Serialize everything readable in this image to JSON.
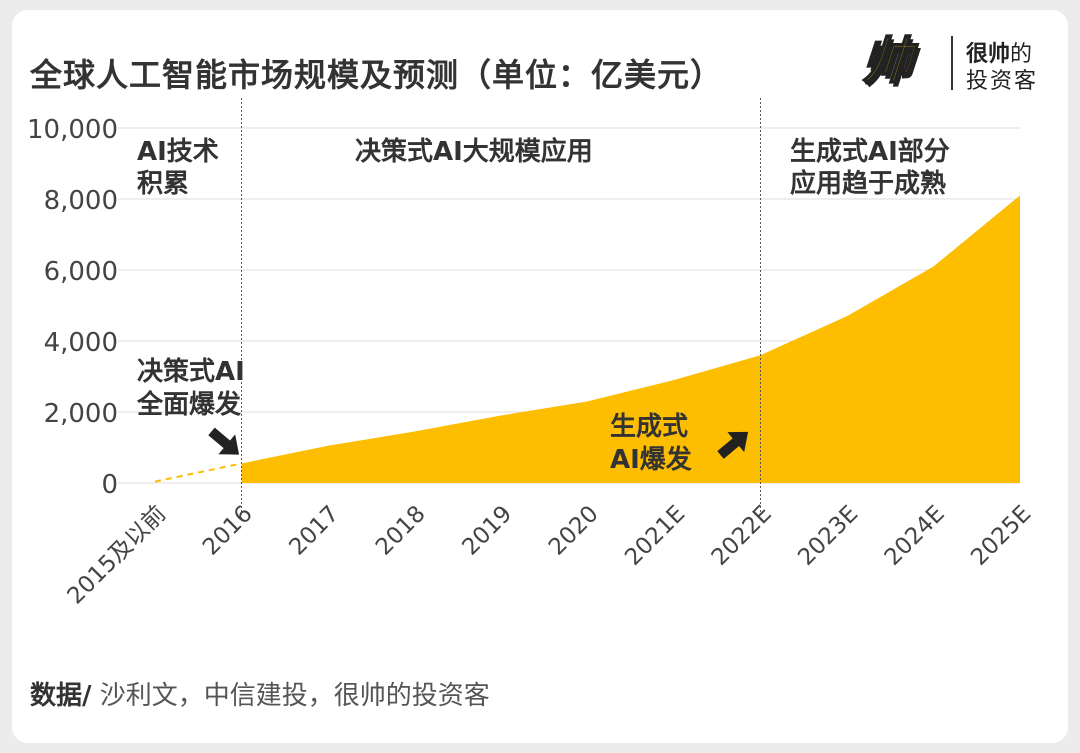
{
  "chart_data": {
    "type": "area",
    "title": "全球人工智能市场规模及预测（单位：亿美元）",
    "categories": [
      "2015及以前",
      "2016",
      "2017",
      "2018",
      "2019",
      "2020",
      "2021E",
      "2022E",
      "2023E",
      "2024E",
      "2025E"
    ],
    "series": [
      {
        "values": [
          40,
          550,
          1050,
          1450,
          1900,
          2300,
          2900,
          3600,
          4700,
          6100,
          8100
        ]
      }
    ],
    "ylim": [
      0,
      10000
    ],
    "yticks": [
      "0",
      "2,000",
      "4,000",
      "6,000",
      "8,000",
      "10,000"
    ],
    "ytick_values": [
      0,
      2000,
      4000,
      6000,
      8000,
      10000
    ],
    "grid": true,
    "colors": {
      "area": "#fdbd00",
      "dashed": "#fdbd00",
      "grid": "#dddddd",
      "divider": "#555555"
    },
    "phases": [
      {
        "label": [
          "AI技术",
          "积累"
        ],
        "divider_after": "2016"
      },
      {
        "label": [
          "决策式AI大规模应用"
        ],
        "divider_after": "2022E"
      },
      {
        "label": [
          "生成式AI部分",
          "应用趋于成熟"
        ]
      }
    ],
    "annotations": [
      {
        "lines": [
          "决策式AI",
          "全面爆发"
        ],
        "at": "2016",
        "arrow": "down-right"
      },
      {
        "lines": [
          "生成式",
          "AI爆发"
        ],
        "at": "2022E",
        "arrow": "up-right"
      }
    ]
  },
  "logo": {
    "mark": "帅",
    "line1_bold": "很帅",
    "line1_rest": "的",
    "line2": "投资客"
  },
  "source": {
    "label": "数据/",
    "text": " 沙利文，中信建投，很帅的投资客"
  }
}
